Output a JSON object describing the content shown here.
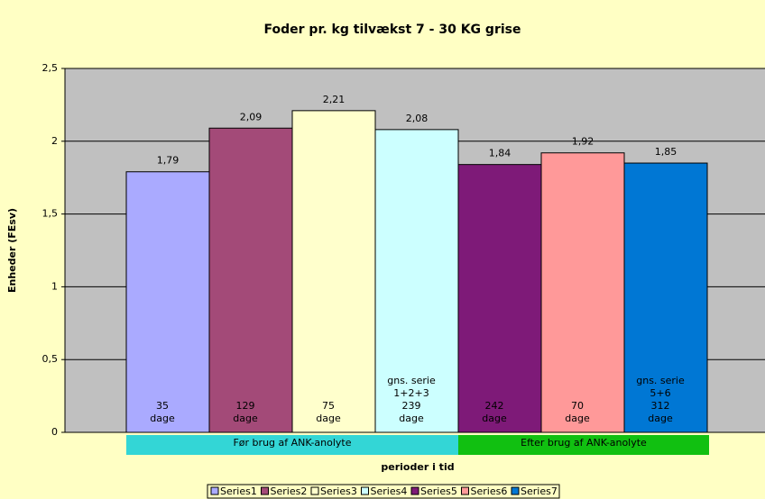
{
  "chart_data": {
    "type": "bar",
    "title": "Foder pr. kg tilvækst 7 - 30 KG grise",
    "y_label": "Enheder (FEsv)",
    "x_label": "perioder i tid",
    "ylim": [
      0,
      2.5
    ],
    "yticks": [
      0,
      {
        "value": 0.5,
        "label": "0,5"
      },
      1,
      {
        "value": 1.5,
        "label": "1,5"
      },
      2,
      {
        "value": 2.5,
        "label": "2,5"
      }
    ],
    "grid": true,
    "legend": "bottom",
    "series": [
      {
        "name": "Series1",
        "color": "#aaaaff",
        "values": [
          1.79
        ],
        "value_labels": [
          "1,79"
        ],
        "note": [
          "35",
          "dage"
        ]
      },
      {
        "name": "Series2",
        "color": "#a34a78",
        "values": [
          2.09
        ],
        "value_labels": [
          "2,09"
        ],
        "note": [
          "129",
          "dage"
        ]
      },
      {
        "name": "Series3",
        "color": "#ffffcc",
        "values": [
          2.21
        ],
        "value_labels": [
          "2,21"
        ],
        "note": [
          "75",
          "dage"
        ]
      },
      {
        "name": "Series4",
        "color": "#ccffff",
        "values": [
          2.08
        ],
        "value_labels": [
          "2,08"
        ],
        "note": [
          "gns. serie",
          "1+2+3",
          "239",
          "dage"
        ]
      },
      {
        "name": "Series5",
        "color": "#7e1a78",
        "values": [
          1.84
        ],
        "value_labels": [
          "1,84"
        ],
        "note": [
          "242",
          "dage"
        ]
      },
      {
        "name": "Series6",
        "color": "#ff9999",
        "values": [
          1.92
        ],
        "value_labels": [
          "1,92"
        ],
        "note": [
          "70",
          "dage"
        ]
      },
      {
        "name": "Series7",
        "color": "#0077d4",
        "values": [
          1.85
        ],
        "value_labels": [
          "1,85"
        ],
        "note": [
          "gns. serie",
          "5+6",
          "312",
          "dage"
        ]
      }
    ],
    "groups": [
      {
        "label": "Før brug af ANK-anolyte",
        "color": "#33d6d6",
        "series_count": 4
      },
      {
        "label": "Efter brug af ANK-anolyte",
        "color": "#11c011",
        "series_count": 3
      }
    ]
  }
}
